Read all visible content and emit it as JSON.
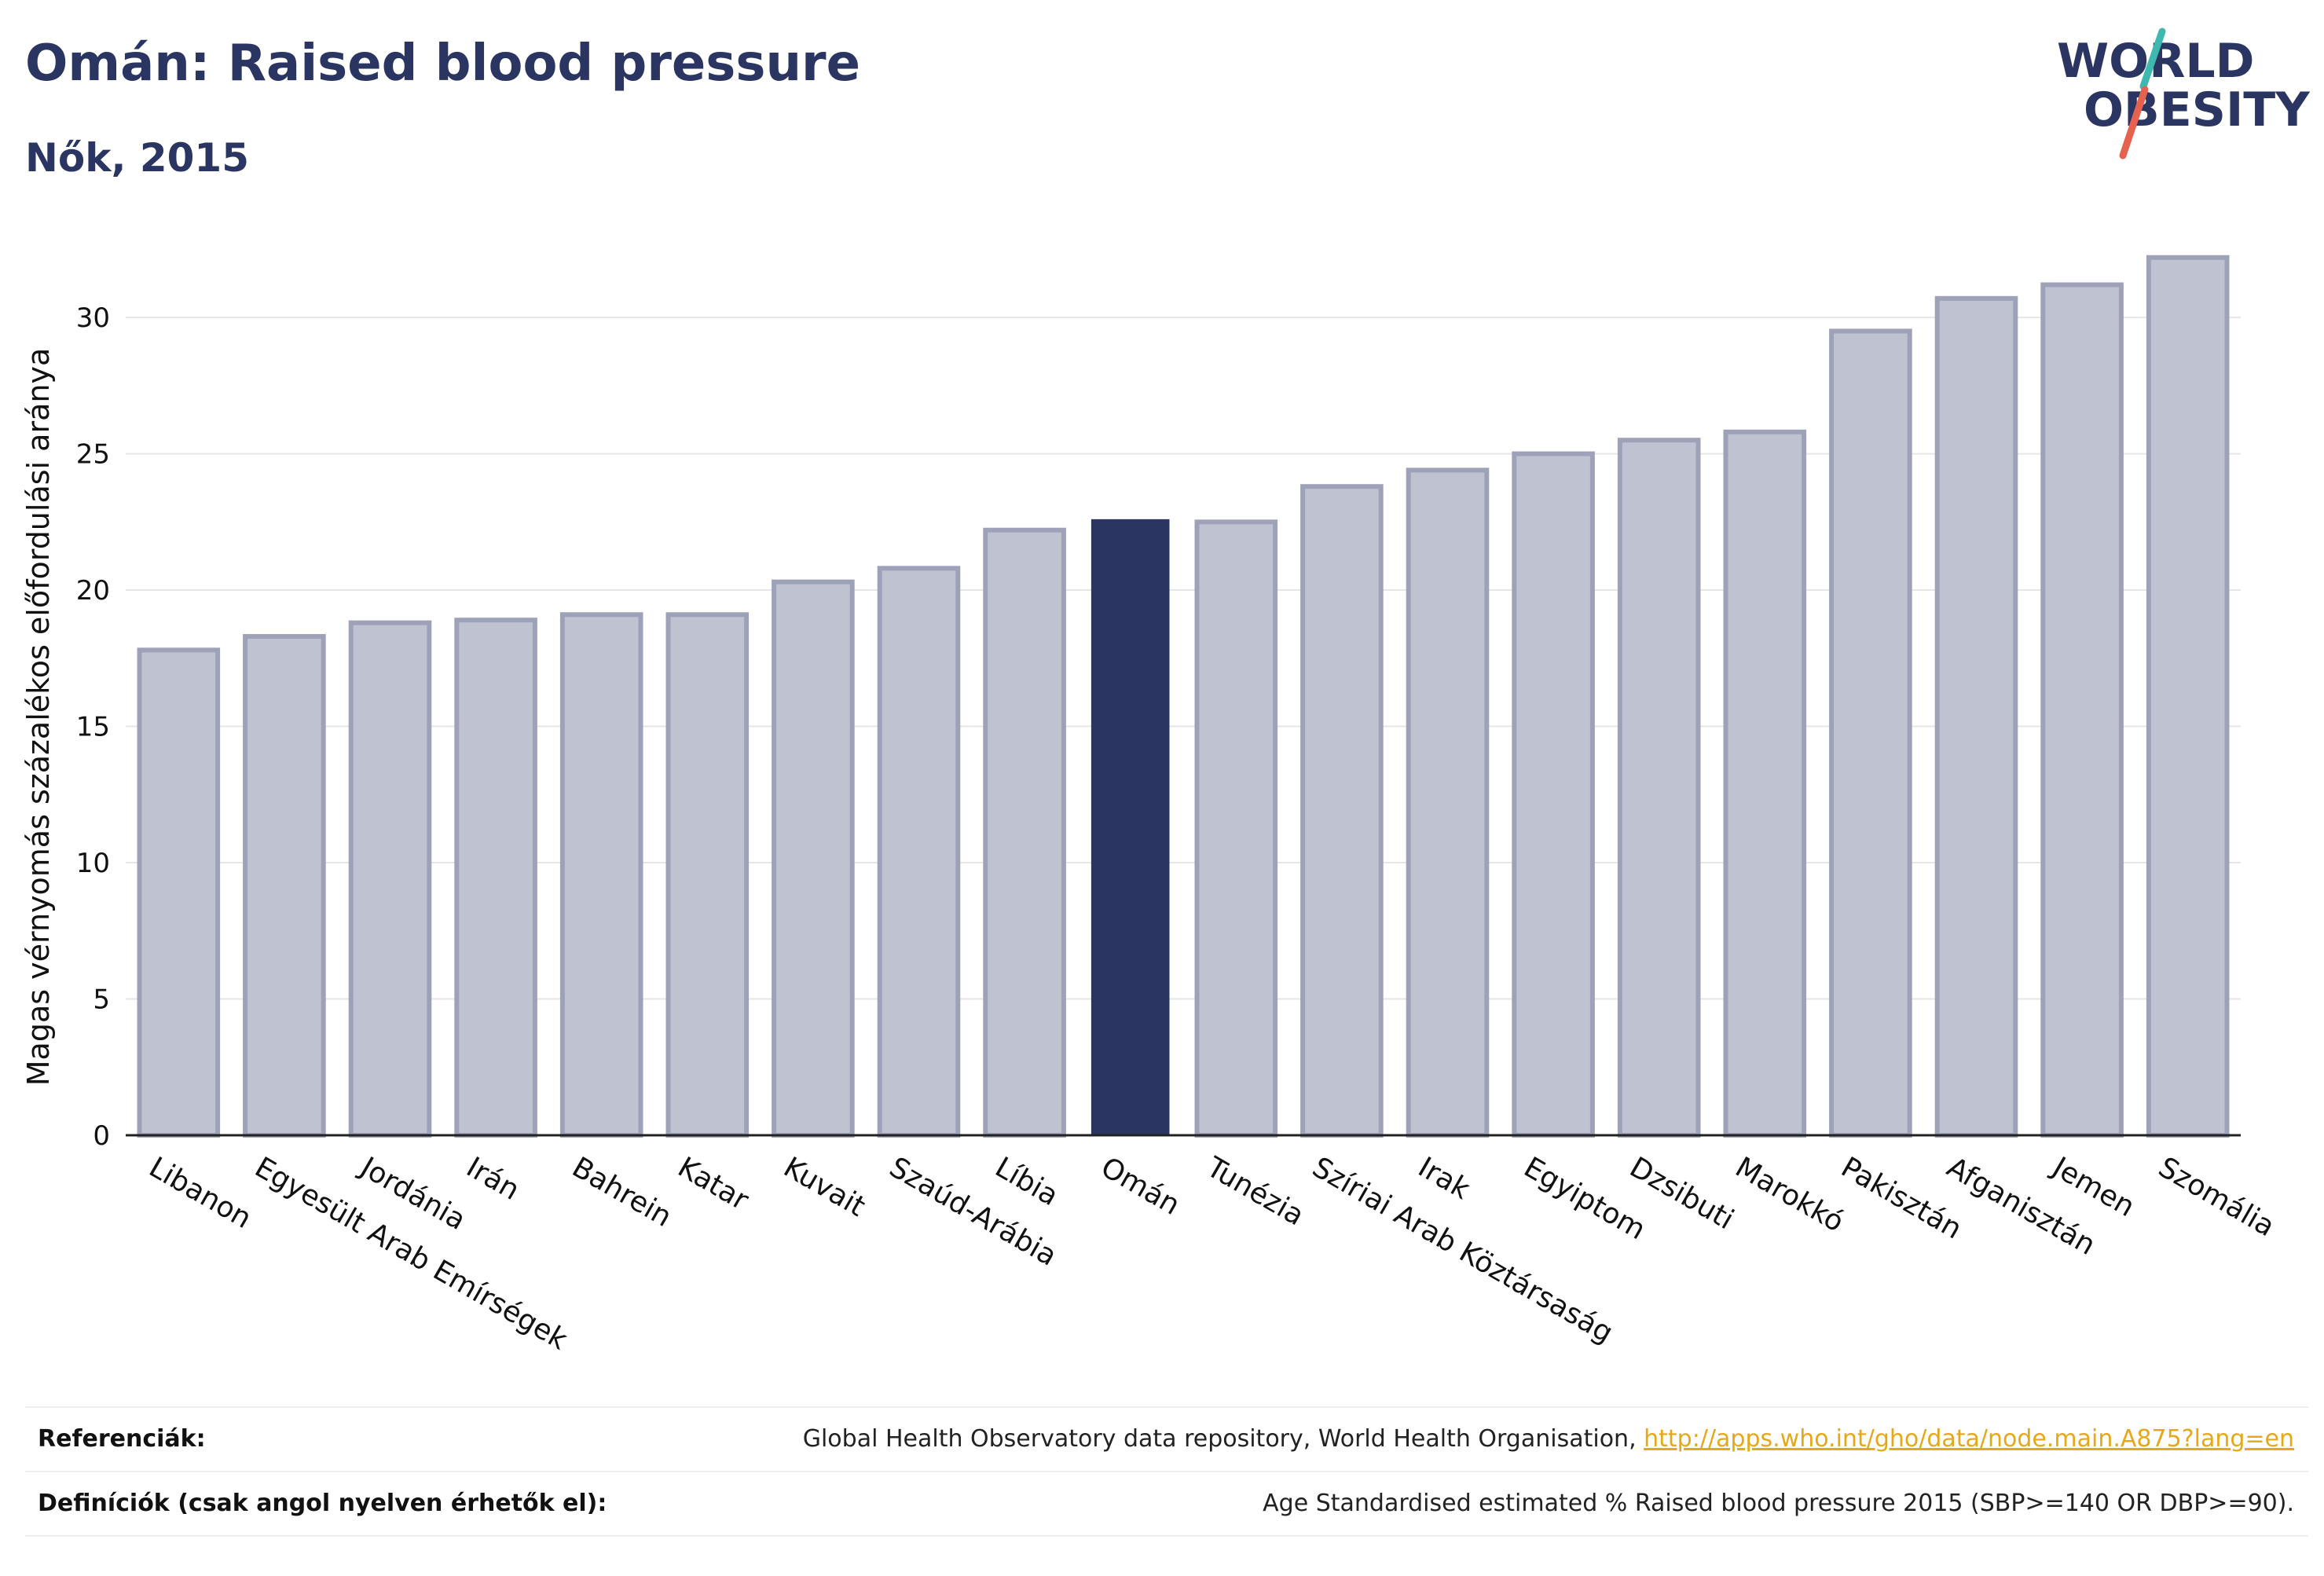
{
  "header": {
    "title": "Omán: Raised blood pressure",
    "subtitle": "Nők, 2015"
  },
  "logo": {
    "line1": "WORLD",
    "line2": "OBESITY",
    "colors": {
      "text": "#2a3561",
      "slash_teal": "#3fb8b0",
      "slash_red": "#e5624f"
    }
  },
  "chart_data": {
    "type": "bar",
    "ylabel": "Magas vérnyomás százalékos előfordulási aránya",
    "xlabel": "",
    "ylim": [
      0,
      33
    ],
    "yticks": [
      0,
      5,
      10,
      15,
      20,
      25,
      30
    ],
    "grid": true,
    "highlight": "Omán",
    "colors": {
      "bar": "#bfc2d0",
      "bar_border": "#9ea2b9",
      "highlight": "#2a3561"
    },
    "categories": [
      "Libanon",
      "Egyesült Arab Emírségek",
      "Jordánia",
      "Irán",
      "Bahrein",
      "Katar",
      "Kuvait",
      "Szaúd-Arábia",
      "Líbia",
      "Omán",
      "Tunézia",
      "Szíriai Arab Köztársaság",
      "Irak",
      "Egyiptom",
      "Dzsibuti",
      "Marokkó",
      "Pakisztán",
      "Afganisztán",
      "Jemen",
      "Szomália"
    ],
    "values": [
      17.8,
      18.3,
      18.8,
      18.9,
      19.1,
      19.1,
      20.3,
      20.8,
      22.2,
      22.6,
      22.5,
      23.8,
      24.4,
      25.0,
      25.5,
      25.8,
      29.5,
      30.7,
      31.2,
      32.2
    ]
  },
  "references": {
    "ref_label": "Referenciák:",
    "ref_text": "Global Health Observatory data repository, World Health Organisation, ",
    "ref_link": "http://apps.who.int/gho/data/node.main.A875?lang=en",
    "def_label": "Definíciók (csak angol nyelven érhetők el):",
    "def_text": "Age Standardised estimated % Raised blood pressure 2015 (SBP>=140 OR DBP>=90)."
  }
}
